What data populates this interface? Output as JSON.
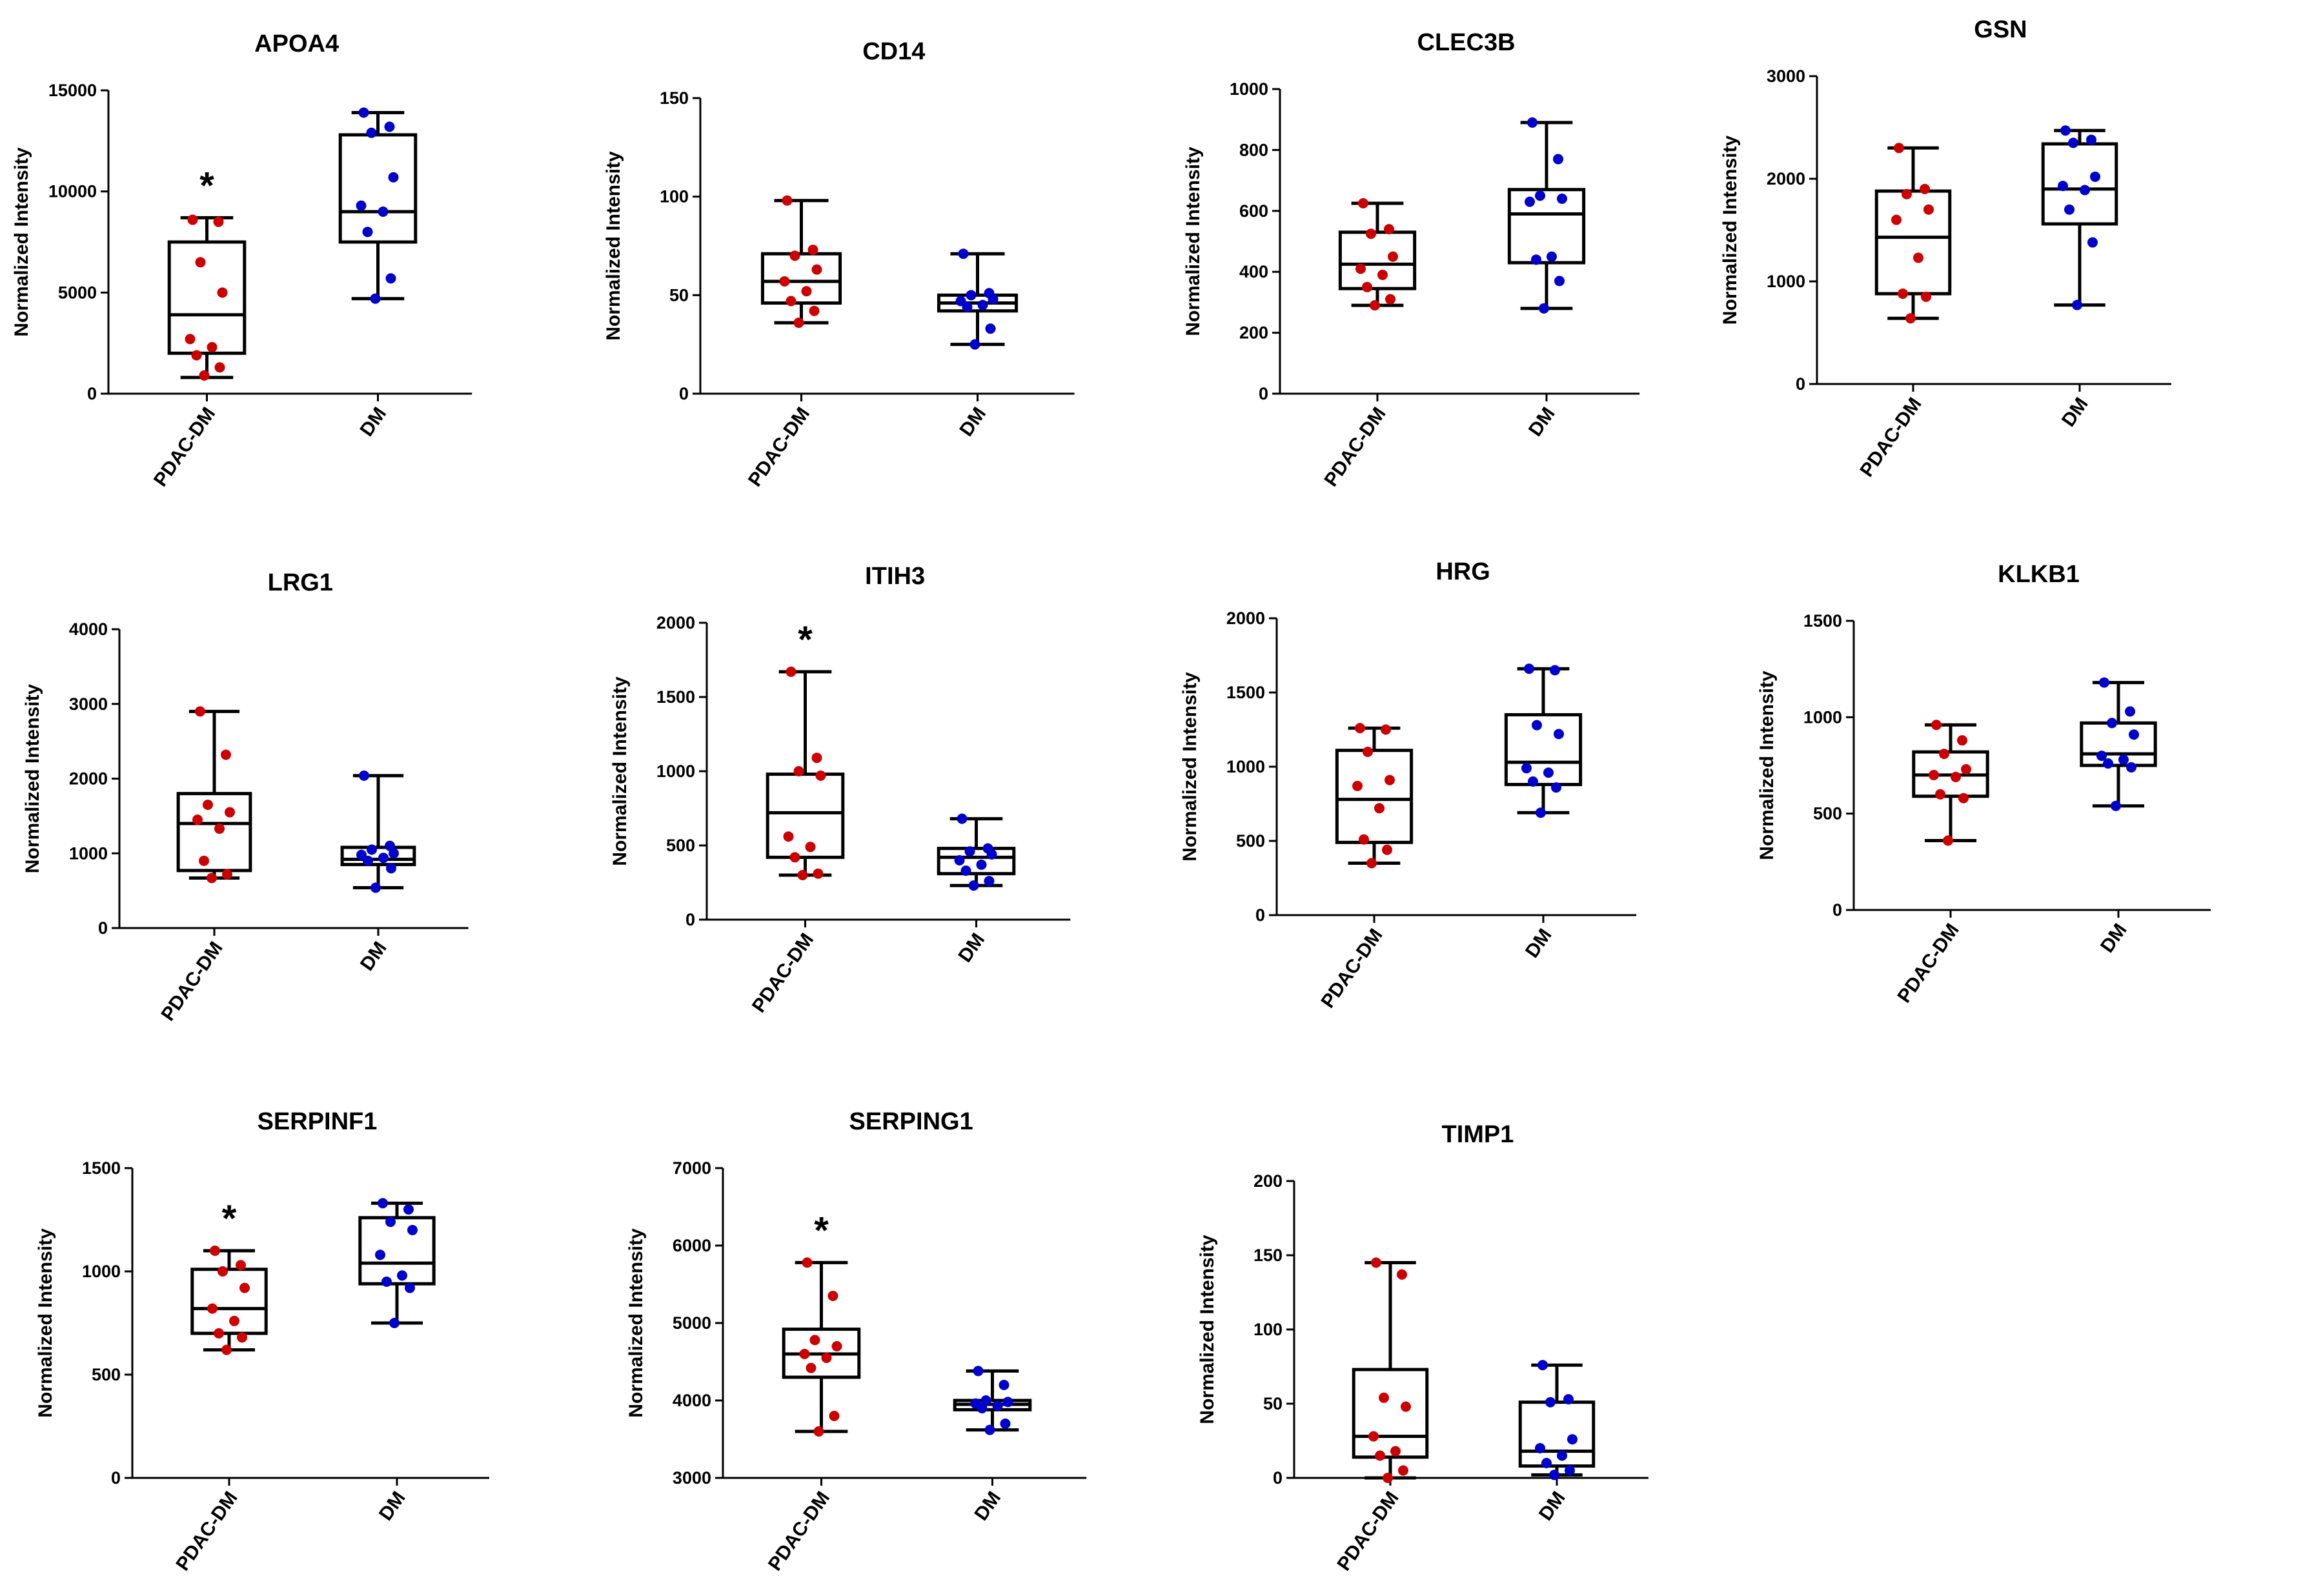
{
  "chart_data": [
    {
      "type": "box",
      "title": "APOA4",
      "ylabel": "Normalized Intensity",
      "ylim": [
        0,
        15000
      ],
      "yticks": [
        0,
        5000,
        10000,
        15000
      ],
      "categories": [
        "PDAC-DM",
        "DM"
      ],
      "significance": [
        "*",
        ""
      ],
      "series": [
        {
          "name": "PDAC-DM",
          "color": "#cc0000",
          "min": 800,
          "q1": 2000,
          "median": 3900,
          "q3": 7500,
          "max": 8700,
          "points": [
            8600,
            8500,
            6500,
            5000,
            2700,
            2300,
            1900,
            1300,
            900
          ]
        },
        {
          "name": "DM",
          "color": "#0000cc",
          "min": 4700,
          "q1": 7500,
          "median": 9000,
          "q3": 12800,
          "max": 13900,
          "points": [
            13900,
            13200,
            12900,
            10700,
            9300,
            9000,
            8000,
            5700,
            4700
          ]
        }
      ]
    },
    {
      "type": "box",
      "title": "CD14",
      "ylabel": "Normalized Intensity",
      "ylim": [
        0,
        150
      ],
      "yticks": [
        0,
        50,
        100,
        150
      ],
      "categories": [
        "PDAC-DM",
        "DM"
      ],
      "significance": [
        "",
        ""
      ],
      "series": [
        {
          "name": "PDAC-DM",
          "color": "#cc0000",
          "min": 36,
          "q1": 46,
          "median": 57,
          "q3": 71,
          "max": 98,
          "points": [
            98,
            73,
            70,
            63,
            57,
            52,
            47,
            42,
            36
          ]
        },
        {
          "name": "DM",
          "color": "#0000cc",
          "min": 25,
          "q1": 42,
          "median": 46,
          "q3": 50,
          "max": 71,
          "points": [
            71,
            51,
            50,
            48,
            47,
            45,
            44,
            33,
            25
          ]
        }
      ]
    },
    {
      "type": "box",
      "title": "CLEC3B",
      "ylabel": "Normalized Intensity",
      "ylim": [
        0,
        1000
      ],
      "yticks": [
        0,
        200,
        400,
        600,
        800,
        1000
      ],
      "categories": [
        "PDAC-DM",
        "DM"
      ],
      "significance": [
        "",
        ""
      ],
      "series": [
        {
          "name": "PDAC-DM",
          "color": "#cc0000",
          "min": 290,
          "q1": 345,
          "median": 425,
          "q3": 530,
          "max": 625,
          "points": [
            625,
            540,
            525,
            450,
            410,
            390,
            350,
            310,
            290
          ]
        },
        {
          "name": "DM",
          "color": "#0000cc",
          "min": 280,
          "q1": 430,
          "median": 590,
          "q3": 670,
          "max": 890,
          "points": [
            890,
            770,
            650,
            640,
            630,
            450,
            440,
            370,
            280
          ]
        }
      ]
    },
    {
      "type": "box",
      "title": "GSN",
      "ylabel": "Normalized Intensity",
      "ylim": [
        0,
        3000
      ],
      "yticks": [
        0,
        1000,
        2000,
        3000
      ],
      "categories": [
        "PDAC-DM",
        "DM"
      ],
      "significance": [
        "",
        ""
      ],
      "series": [
        {
          "name": "PDAC-DM",
          "color": "#cc0000",
          "min": 640,
          "q1": 880,
          "median": 1430,
          "q3": 1880,
          "max": 2300,
          "points": [
            2300,
            1900,
            1850,
            1700,
            1600,
            1230,
            880,
            850,
            640
          ]
        },
        {
          "name": "DM",
          "color": "#0000cc",
          "min": 770,
          "q1": 1560,
          "median": 1900,
          "q3": 2340,
          "max": 2470,
          "points": [
            2470,
            2380,
            2350,
            2020,
            1930,
            1890,
            1700,
            1380,
            770
          ]
        }
      ]
    },
    {
      "type": "box",
      "title": "LRG1",
      "ylabel": "Normalized Intensity",
      "ylim": [
        0,
        4000
      ],
      "yticks": [
        0,
        1000,
        2000,
        3000,
        4000
      ],
      "categories": [
        "PDAC-DM",
        "DM"
      ],
      "significance": [
        "",
        ""
      ],
      "series": [
        {
          "name": "PDAC-DM",
          "color": "#cc0000",
          "min": 670,
          "q1": 770,
          "median": 1400,
          "q3": 1800,
          "max": 2900,
          "points": [
            2900,
            2320,
            1650,
            1550,
            1450,
            1330,
            900,
            720,
            670
          ]
        },
        {
          "name": "DM",
          "color": "#0000cc",
          "min": 540,
          "q1": 850,
          "median": 920,
          "q3": 1080,
          "max": 2040,
          "points": [
            2040,
            1100,
            1050,
            1000,
            980,
            940,
            900,
            800,
            540
          ]
        }
      ]
    },
    {
      "type": "box",
      "title": "ITIH3",
      "ylabel": "Normalized Intensity",
      "ylim": [
        0,
        2000
      ],
      "yticks": [
        0,
        500,
        1000,
        1500,
        2000
      ],
      "categories": [
        "PDAC-DM",
        "DM"
      ],
      "significance": [
        "*",
        ""
      ],
      "series": [
        {
          "name": "PDAC-DM",
          "color": "#cc0000",
          "min": 300,
          "q1": 420,
          "median": 720,
          "q3": 980,
          "max": 1670,
          "points": [
            1670,
            1090,
            1000,
            970,
            560,
            490,
            420,
            310,
            300
          ]
        },
        {
          "name": "DM",
          "color": "#0000cc",
          "min": 230,
          "q1": 310,
          "median": 420,
          "q3": 480,
          "max": 680,
          "points": [
            680,
            480,
            460,
            440,
            400,
            370,
            330,
            260,
            230
          ]
        }
      ]
    },
    {
      "type": "box",
      "title": "HRG",
      "ylabel": "Normalized Intensity",
      "ylim": [
        0,
        2000
      ],
      "yticks": [
        0,
        500,
        1000,
        1500,
        2000
      ],
      "categories": [
        "PDAC-DM",
        "DM"
      ],
      "significance": [
        "",
        ""
      ],
      "series": [
        {
          "name": "PDAC-DM",
          "color": "#cc0000",
          "min": 350,
          "q1": 490,
          "median": 780,
          "q3": 1110,
          "max": 1260,
          "points": [
            1260,
            1250,
            1100,
            910,
            870,
            720,
            510,
            440,
            350
          ]
        },
        {
          "name": "DM",
          "color": "#0000cc",
          "min": 690,
          "q1": 880,
          "median": 1030,
          "q3": 1350,
          "max": 1660,
          "points": [
            1660,
            1650,
            1280,
            1220,
            990,
            960,
            900,
            860,
            690
          ]
        }
      ]
    },
    {
      "type": "box",
      "title": "KLKB1",
      "ylabel": "Normalized Intensity",
      "ylim": [
        0,
        1500
      ],
      "yticks": [
        0,
        500,
        1000,
        1500
      ],
      "categories": [
        "PDAC-DM",
        "DM"
      ],
      "significance": [
        "",
        ""
      ],
      "series": [
        {
          "name": "PDAC-DM",
          "color": "#cc0000",
          "min": 360,
          "q1": 590,
          "median": 700,
          "q3": 820,
          "max": 960,
          "points": [
            960,
            880,
            810,
            730,
            700,
            690,
            600,
            580,
            360
          ]
        },
        {
          "name": "DM",
          "color": "#0000cc",
          "min": 540,
          "q1": 750,
          "median": 810,
          "q3": 970,
          "max": 1180,
          "points": [
            1180,
            1030,
            970,
            910,
            800,
            780,
            760,
            740,
            540
          ]
        }
      ]
    },
    {
      "type": "box",
      "title": "SERPINF1",
      "ylabel": "Normalized Intensity",
      "ylim": [
        0,
        1500
      ],
      "yticks": [
        0,
        500,
        1000,
        1500
      ],
      "categories": [
        "PDAC-DM",
        "DM"
      ],
      "significance": [
        "*",
        ""
      ],
      "series": [
        {
          "name": "PDAC-DM",
          "color": "#cc0000",
          "min": 620,
          "q1": 700,
          "median": 820,
          "q3": 1010,
          "max": 1100,
          "points": [
            1100,
            1030,
            1000,
            920,
            820,
            760,
            700,
            680,
            620
          ]
        },
        {
          "name": "DM",
          "color": "#0000cc",
          "min": 750,
          "q1": 940,
          "median": 1040,
          "q3": 1260,
          "max": 1330,
          "points": [
            1330,
            1300,
            1240,
            1200,
            1080,
            980,
            950,
            920,
            750
          ]
        }
      ]
    },
    {
      "type": "box",
      "title": "SERPING1",
      "ylabel": "Normalized Intensity",
      "ylim": [
        3000,
        7000
      ],
      "yticks": [
        3000,
        4000,
        5000,
        6000,
        7000
      ],
      "categories": [
        "PDAC-DM",
        "DM"
      ],
      "significance": [
        "*",
        ""
      ],
      "series": [
        {
          "name": "PDAC-DM",
          "color": "#cc0000",
          "min": 3600,
          "q1": 4300,
          "median": 4600,
          "q3": 4920,
          "max": 5780,
          "points": [
            5780,
            5350,
            4780,
            4700,
            4600,
            4550,
            4420,
            3800,
            3600
          ]
        },
        {
          "name": "DM",
          "color": "#0000cc",
          "min": 3620,
          "q1": 3880,
          "median": 3950,
          "q3": 4000,
          "max": 4380,
          "points": [
            4380,
            4200,
            4000,
            3980,
            3960,
            3930,
            3900,
            3700,
            3620
          ]
        }
      ]
    },
    {
      "type": "box",
      "title": "TIMP1",
      "ylabel": "Normalized Intensity",
      "ylim": [
        0,
        200
      ],
      "yticks": [
        0,
        50,
        100,
        150,
        200
      ],
      "categories": [
        "PDAC-DM",
        "DM"
      ],
      "significance": [
        "",
        ""
      ],
      "series": [
        {
          "name": "PDAC-DM",
          "color": "#cc0000",
          "min": 0,
          "q1": 14,
          "median": 28,
          "q3": 73,
          "max": 145,
          "points": [
            145,
            137,
            54,
            48,
            28,
            18,
            15,
            5,
            0
          ]
        },
        {
          "name": "DM",
          "color": "#0000cc",
          "min": 2,
          "q1": 8,
          "median": 18,
          "q3": 51,
          "max": 76,
          "points": [
            76,
            53,
            51,
            26,
            20,
            15,
            10,
            5,
            2
          ]
        }
      ]
    }
  ]
}
